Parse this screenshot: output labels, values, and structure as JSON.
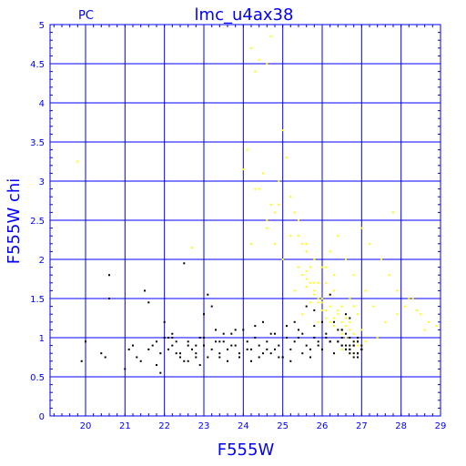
{
  "chart_data": {
    "type": "scatter",
    "title": "lmc_u4ax38",
    "corner_label": "PC",
    "xlabel": "F555W",
    "ylabel": "F555W  chi",
    "xlim": [
      19.1,
      29
    ],
    "ylim": [
      0,
      5
    ],
    "x_ticks": [
      "20",
      "21",
      "22",
      "23",
      "24",
      "25",
      "26",
      "27",
      "28",
      "29"
    ],
    "y_ticks": [
      "0",
      "0.5",
      "1",
      "1.5",
      "2",
      "2.5",
      "3",
      "3.5",
      "4",
      "4.5",
      "5"
    ],
    "grid": true,
    "colors": {
      "axes": "#0000ff",
      "series_black": "#000000",
      "series_yellow": "#ffff00",
      "background": "#ffffff"
    },
    "series": [
      {
        "color": "yellow",
        "x": [
          19.8,
          22.7,
          24.0,
          24.2,
          24.3,
          24.4,
          24.6,
          24.7,
          24.1,
          24.5,
          24.3,
          24.8,
          24.9,
          25.0,
          25.1,
          24.9,
          25.2,
          25.3,
          25.4,
          24.7,
          24.6,
          25.5,
          25.6,
          25.8,
          26.1,
          26.3,
          24.2,
          24.4,
          24.6,
          24.8,
          25.0,
          25.2,
          25.4,
          25.6,
          25.7,
          25.9,
          26.0,
          26.2,
          26.4,
          26.6,
          26.8,
          27.0,
          27.2,
          27.5,
          27.7,
          27.8,
          27.9,
          28.1,
          28.3,
          28.5,
          28.7,
          28.9,
          25.3,
          25.5,
          25.7,
          25.9,
          26.1,
          26.3,
          26.5,
          26.7,
          26.9,
          27.1,
          27.3,
          27.6,
          27.9,
          28.2,
          28.4,
          28.6,
          25.4,
          25.6,
          25.8,
          26.0,
          26.2,
          26.4,
          26.6,
          26.8,
          27.0,
          25.5,
          25.7,
          25.9,
          26.1,
          26.3,
          26.5,
          26.7,
          26.9,
          25.6,
          25.8,
          26.0,
          26.2,
          26.4,
          26.6,
          26.8,
          27.0,
          26.5,
          26.7,
          26.9,
          27.0,
          26.8,
          26.6,
          26.4,
          26.2,
          26.0,
          25.8,
          25.6,
          27.4,
          27.1,
          26.9,
          26.7,
          26.5,
          26.3,
          26.1,
          25.9
        ],
        "y": [
          3.25,
          2.15,
          3.15,
          4.7,
          4.4,
          4.55,
          4.5,
          4.85,
          3.4,
          3.1,
          2.9,
          2.6,
          2.7,
          3.65,
          3.3,
          3.0,
          2.8,
          2.6,
          2.3,
          2.7,
          2.4,
          2.2,
          2.1,
          2.0,
          1.9,
          1.8,
          2.2,
          2.9,
          2.5,
          2.2,
          2.0,
          2.3,
          2.5,
          2.2,
          1.9,
          1.7,
          1.9,
          2.1,
          2.3,
          2.0,
          1.8,
          2.4,
          2.2,
          2.0,
          1.8,
          2.6,
          1.6,
          1.4,
          1.5,
          1.3,
          1.2,
          1.15,
          1.6,
          1.8,
          1.7,
          1.5,
          1.7,
          1.6,
          1.4,
          1.5,
          1.3,
          1.6,
          1.4,
          1.2,
          1.3,
          1.5,
          1.35,
          1.1,
          1.9,
          1.75,
          1.6,
          1.45,
          1.55,
          1.35,
          1.25,
          1.4,
          1.1,
          1.3,
          1.45,
          1.2,
          1.25,
          1.15,
          1.05,
          1.2,
          1.0,
          1.65,
          1.55,
          1.35,
          1.2,
          1.1,
          1.0,
          0.95,
          0.9,
          0.85,
          0.8,
          0.95,
          0.85,
          1.05,
          1.15,
          1.3,
          1.4,
          1.5,
          1.7,
          1.85,
          1.0,
          0.95,
          0.9,
          1.1,
          1.2,
          1.25,
          1.35,
          1.45
        ]
      },
      {
        "color": "black",
        "x": [
          19.9,
          20.0,
          20.5,
          20.6,
          21.0,
          21.1,
          21.3,
          21.5,
          21.6,
          21.7,
          21.8,
          21.9,
          22.0,
          22.1,
          22.2,
          22.3,
          22.4,
          22.5,
          22.6,
          22.7,
          22.8,
          22.9,
          23.0,
          23.1,
          23.2,
          23.3,
          23.4,
          23.5,
          23.6,
          23.7,
          23.8,
          23.9,
          24.0,
          24.1,
          24.2,
          24.3,
          24.4,
          24.5,
          24.6,
          24.7,
          24.8,
          24.9,
          25.0,
          25.1,
          25.2,
          25.3,
          25.4,
          25.5,
          25.6,
          25.7,
          25.8,
          25.9,
          26.0,
          26.1,
          26.2,
          26.3,
          26.4,
          26.5,
          26.6,
          26.7,
          26.8,
          26.9,
          27.0,
          20.4,
          21.2,
          21.9,
          22.5,
          22.9,
          23.0,
          23.2,
          22.1,
          22.3,
          22.6,
          22.8,
          23.1,
          23.3,
          23.5,
          23.7,
          23.9,
          24.1,
          24.3,
          24.5,
          24.7,
          24.9,
          25.1,
          25.3,
          25.5,
          25.7,
          25.9,
          26.1,
          26.3,
          26.5,
          26.7,
          26.9,
          21.4,
          21.8,
          22.2,
          22.6,
          23.0,
          23.4,
          23.8,
          24.2,
          24.6,
          25.0,
          25.4,
          25.8,
          26.2,
          26.6,
          27.0,
          26.4,
          26.5,
          26.6,
          26.7,
          26.8,
          26.9,
          27.0,
          26.5,
          26.6,
          26.7,
          26.8,
          26.9,
          26.4,
          26.6,
          26.8,
          27.0,
          26.7,
          26.9,
          26.5,
          26.8,
          26.6,
          26.9,
          26.7,
          22.0,
          22.4,
          22.8,
          23.6,
          24.4,
          25.2,
          25.6,
          26.0,
          26.2,
          25.8,
          24.8,
          23.4,
          22.2,
          21.6,
          20.6
        ],
        "y": [
          0.7,
          0.95,
          0.75,
          1.8,
          0.6,
          0.85,
          0.75,
          1.6,
          0.85,
          0.9,
          0.95,
          0.8,
          1.0,
          0.85,
          0.9,
          0.8,
          0.75,
          1.95,
          0.95,
          0.85,
          0.75,
          1.0,
          0.9,
          1.55,
          0.85,
          1.1,
          0.8,
          0.95,
          0.85,
          1.05,
          0.9,
          0.8,
          1.1,
          0.95,
          0.85,
          1.0,
          0.9,
          0.8,
          0.95,
          1.05,
          0.85,
          0.9,
          0.75,
          1.0,
          0.85,
          0.95,
          1.1,
          0.8,
          0.9,
          0.85,
          1.0,
          0.9,
          0.85,
          1.05,
          0.95,
          0.8,
          1.1,
          0.9,
          0.85,
          1.0,
          0.95,
          0.8,
          0.9,
          0.8,
          0.9,
          0.55,
          0.7,
          0.65,
          1.3,
          1.4,
          1.0,
          0.95,
          0.9,
          0.8,
          0.75,
          0.95,
          1.05,
          0.9,
          0.75,
          0.85,
          1.15,
          1.2,
          0.8,
          0.75,
          1.15,
          1.2,
          1.05,
          0.75,
          0.95,
          1.0,
          1.2,
          1.1,
          0.85,
          0.75,
          0.7,
          0.65,
          1.05,
          0.7,
          1.0,
          0.95,
          1.1,
          0.7,
          0.85,
          0.75,
          1.0,
          1.15,
          0.95,
          1.3,
          0.85,
          0.95,
          0.9,
          0.85,
          0.8,
          0.9,
          0.95,
          0.85,
          1.0,
          0.9,
          0.85,
          0.8,
          1.0,
          0.95,
          1.05,
          0.75,
          0.85,
          0.9,
          0.95,
          1.1,
          0.9,
          0.85,
          0.8,
          1.25,
          1.2,
          0.8,
          0.9,
          0.7,
          0.75,
          0.7,
          1.4,
          1.2,
          1.55,
          1.35,
          1.05,
          0.75,
          1.0,
          1.45,
          1.5
        ]
      }
    ]
  }
}
